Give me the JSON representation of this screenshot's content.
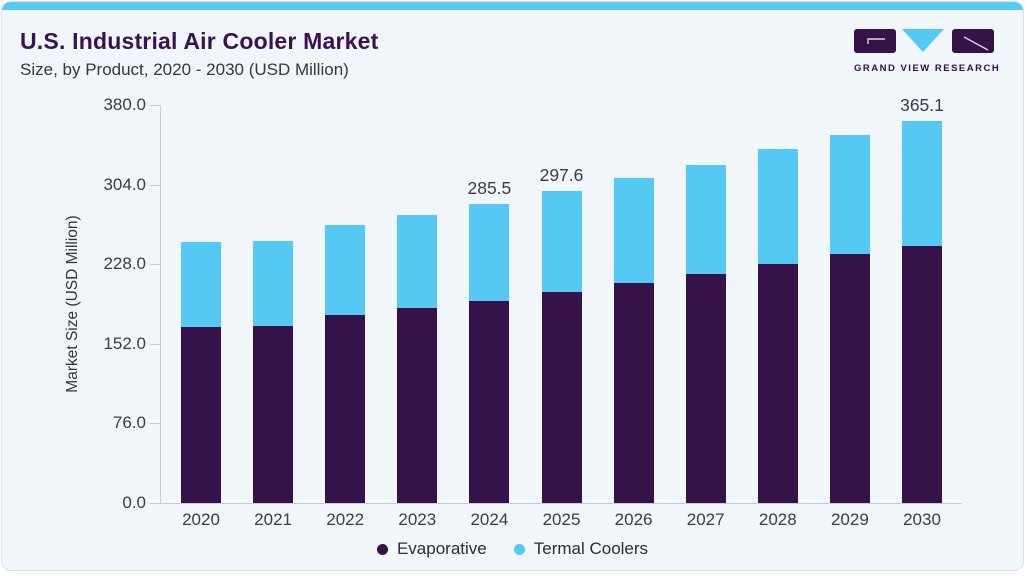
{
  "header": {
    "title": "U.S. Industrial Air Cooler Market",
    "subtitle": "Size, by Product, 2020 - 2030 (USD Million)",
    "logo_text": "GRAND VIEW RESEARCH"
  },
  "colors": {
    "evaporative": "#36124a",
    "termal_coolers": "#56c8f4",
    "card_background": "#f1f6fa",
    "accent_strip": "#56c8f4",
    "title_purple": "#3a1253",
    "axis_gray": "#c7cad1"
  },
  "chart_data": {
    "type": "bar",
    "stacked": true,
    "title": "U.S. Industrial Air Cooler Market Size, by Product, 2020 - 2030 (USD Million)",
    "xlabel": "",
    "ylabel": "Market Size (USD Million)",
    "ylim": [
      0,
      380
    ],
    "yticks": [
      0,
      76,
      152,
      228,
      304,
      380
    ],
    "ytick_labels": [
      "0.0",
      "76.0",
      "152.0",
      "228.0",
      "304.0",
      "380.0"
    ],
    "grid": false,
    "legend_position": "bottom",
    "categories": [
      "2020",
      "2021",
      "2022",
      "2023",
      "2024",
      "2025",
      "2026",
      "2027",
      "2028",
      "2029",
      "2030"
    ],
    "series": [
      {
        "name": "Evaporative",
        "color": "#36124a",
        "values": [
          168.0,
          169.2,
          179.5,
          186.3,
          193.3,
          201.6,
          210.3,
          218.3,
          228.6,
          237.5,
          245.5
        ]
      },
      {
        "name": "Termal Coolers",
        "color": "#56c8f4",
        "values": [
          80.8,
          81.1,
          85.9,
          88.7,
          92.2,
          96.0,
          100.3,
          104.8,
          109.2,
          113.8,
          119.6
        ]
      }
    ],
    "totals": [
      248.8,
      250.3,
      265.4,
      275.0,
      285.5,
      297.6,
      310.6,
      323.1,
      337.8,
      351.3,
      365.1
    ],
    "total_labels": [
      null,
      null,
      null,
      null,
      "285.5",
      "297.6",
      null,
      null,
      null,
      null,
      "365.1"
    ]
  },
  "legend": {
    "items": [
      {
        "label": "Evaporative",
        "color": "#36124a"
      },
      {
        "label": "Termal Coolers",
        "color": "#56c8f4"
      }
    ]
  }
}
